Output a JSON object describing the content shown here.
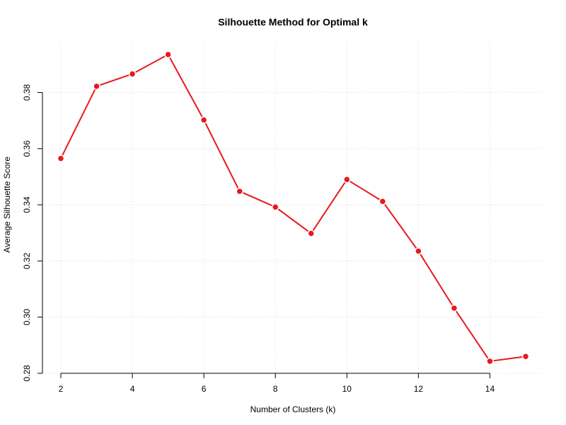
{
  "chart_data": {
    "type": "line",
    "title": "Silhouette Method for Optimal k",
    "xlabel": "Number of Clusters (k)",
    "ylabel": "Average Silhouette Score",
    "xlim": [
      1.98,
      15.52
    ],
    "ylim": [
      0.28,
      0.398
    ],
    "x_ticks": [
      2,
      4,
      6,
      8,
      10,
      12,
      14
    ],
    "x_tick_labels": [
      "2",
      "4",
      "6",
      "8",
      "10",
      "12",
      "14"
    ],
    "y_ticks": [
      0.28,
      0.3,
      0.32,
      0.34,
      0.36,
      0.38
    ],
    "y_tick_labels": [
      "0.28",
      "0.30",
      "0.32",
      "0.34",
      "0.36",
      "0.38"
    ],
    "grid": true,
    "series": [
      {
        "color": "#e8191d",
        "x": [
          2,
          3,
          4,
          5,
          6,
          7,
          8,
          9,
          10,
          11,
          12,
          13,
          14,
          15
        ],
        "values": [
          0.3565,
          0.3822,
          0.3866,
          0.3935,
          0.3702,
          0.3448,
          0.3392,
          0.3298,
          0.349,
          0.3412,
          0.3235,
          0.3032,
          0.2843,
          0.286
        ]
      }
    ]
  }
}
